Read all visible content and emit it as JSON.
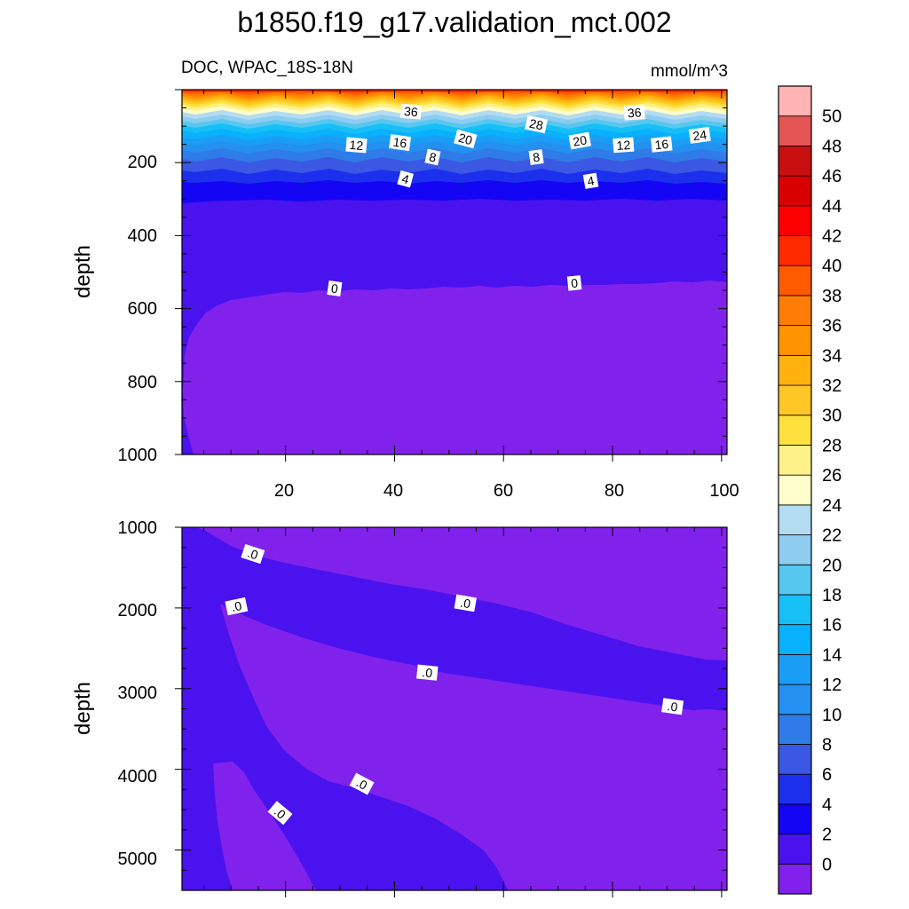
{
  "title": "b1850.f19_g17.validation_mct.002",
  "chart_data": [
    {
      "type": "contour",
      "panel": "upper",
      "subtitle_left": "DOC, WPAC_18S-18N",
      "subtitle_right": "mmol/m^3",
      "ylabel": "depth",
      "xlabel": "",
      "xlim": [
        1,
        101
      ],
      "ylim": [
        0,
        1000
      ],
      "y_reversed": true,
      "x_ticks": [
        "20",
        "40",
        "60",
        "80",
        "100"
      ],
      "y_ticks": [
        "200",
        "400",
        "600",
        "800",
        "1000"
      ],
      "contour_labels": [
        {
          "text": "36",
          "x": 43,
          "y": 60
        },
        {
          "text": "36",
          "x": 84,
          "y": 63
        },
        {
          "text": "28",
          "x": 66,
          "y": 95
        },
        {
          "text": "24",
          "x": 96,
          "y": 125
        },
        {
          "text": "20",
          "x": 53,
          "y": 135
        },
        {
          "text": "20",
          "x": 74,
          "y": 140
        },
        {
          "text": "16",
          "x": 41,
          "y": 145
        },
        {
          "text": "16",
          "x": 89,
          "y": 150
        },
        {
          "text": "12",
          "x": 33,
          "y": 152
        },
        {
          "text": "12",
          "x": 82,
          "y": 152
        },
        {
          "text": "8",
          "x": 47,
          "y": 185
        },
        {
          "text": "8",
          "x": 66,
          "y": 185
        },
        {
          "text": "4",
          "x": 42,
          "y": 245
        },
        {
          "text": "4",
          "x": 76,
          "y": 250
        },
        {
          "text": "0",
          "x": 29,
          "y": 545
        },
        {
          "text": "0",
          "x": 73,
          "y": 530
        }
      ]
    },
    {
      "type": "contour",
      "panel": "lower",
      "ylabel": "depth",
      "xlim": [
        1,
        101
      ],
      "ylim": [
        1000,
        5500
      ],
      "y_reversed": true,
      "y_ticks": [
        "1000",
        "2000",
        "3000",
        "4000",
        "5000"
      ],
      "contour_labels": [
        {
          "text": ".0",
          "x": 14,
          "y": 1330
        },
        {
          "text": ".0",
          "x": 11,
          "y": 1980
        },
        {
          "text": ".0",
          "x": 53,
          "y": 1940
        },
        {
          "text": ".0",
          "x": 46,
          "y": 2800
        },
        {
          "text": ".0",
          "x": 91,
          "y": 3220
        },
        {
          "text": ".0",
          "x": 34,
          "y": 4180
        },
        {
          "text": ".0",
          "x": 19,
          "y": 4540
        }
      ]
    }
  ],
  "colorbar": {
    "levels": [
      "0",
      "2",
      "4",
      "6",
      "8",
      "10",
      "12",
      "14",
      "16",
      "18",
      "20",
      "22",
      "24",
      "26",
      "28",
      "30",
      "32",
      "34",
      "36",
      "38",
      "40",
      "42",
      "44",
      "46",
      "48",
      "50"
    ],
    "colors": [
      "#8122ec",
      "#4a12ee",
      "#1405f5",
      "#1c2fed",
      "#3a58e3",
      "#2f7be8",
      "#2490ef",
      "#1a9ef5",
      "#09b0fb",
      "#17bff7",
      "#56c8f0",
      "#8fcdf0",
      "#b3dcf2",
      "#ffffcc",
      "#fff18a",
      "#ffe03d",
      "#ffc726",
      "#ffb20e",
      "#ff9400",
      "#ff7c07",
      "#ff5a00",
      "#ff2a00",
      "#ff0000",
      "#d90000",
      "#c90f0f",
      "#e65555",
      "#ffb3b3"
    ]
  }
}
